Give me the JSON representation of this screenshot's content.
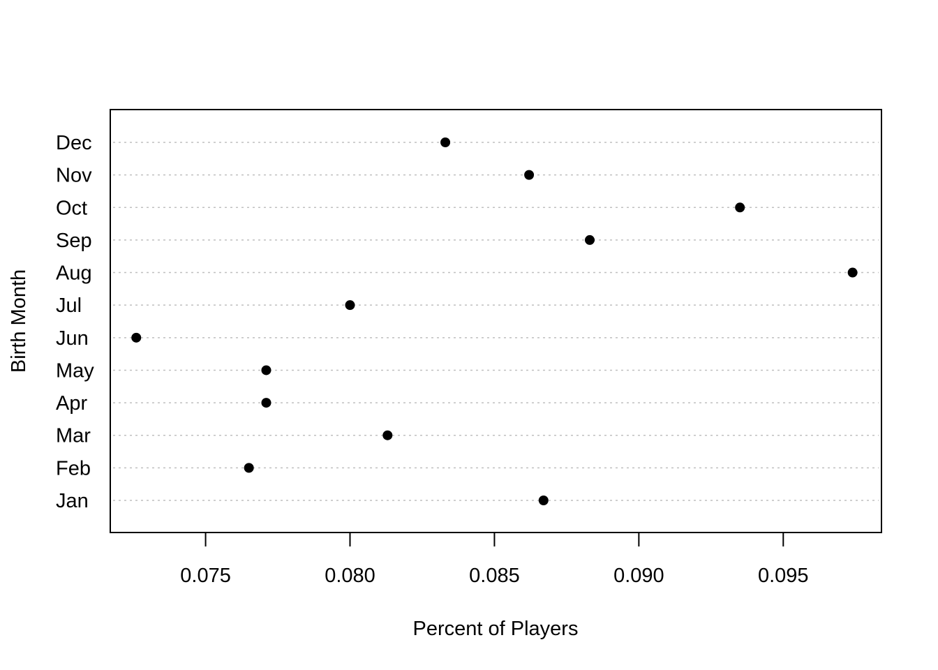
{
  "chart_data": {
    "type": "scatter",
    "style": "dot-plot",
    "title": "",
    "xlabel": "Percent of Players",
    "ylabel": "Birth Month",
    "xlim": [
      0.0717,
      0.0984
    ],
    "x_ticks": [
      0.075,
      0.08,
      0.085,
      0.09,
      0.095
    ],
    "x_tick_labels": [
      "0.075",
      "0.080",
      "0.085",
      "0.090",
      "0.095"
    ],
    "categories": [
      "Jan",
      "Feb",
      "Mar",
      "Apr",
      "May",
      "Jun",
      "Jul",
      "Aug",
      "Sep",
      "Oct",
      "Nov",
      "Dec"
    ],
    "values": [
      0.0867,
      0.0765,
      0.0813,
      0.0771,
      0.0771,
      0.0726,
      0.08,
      0.0974,
      0.0883,
      0.0935,
      0.0862,
      0.0833
    ],
    "grid": "horizontal dotted guide lines per category",
    "marker_color": "#000000",
    "grid_color": "#bfbfbf"
  }
}
